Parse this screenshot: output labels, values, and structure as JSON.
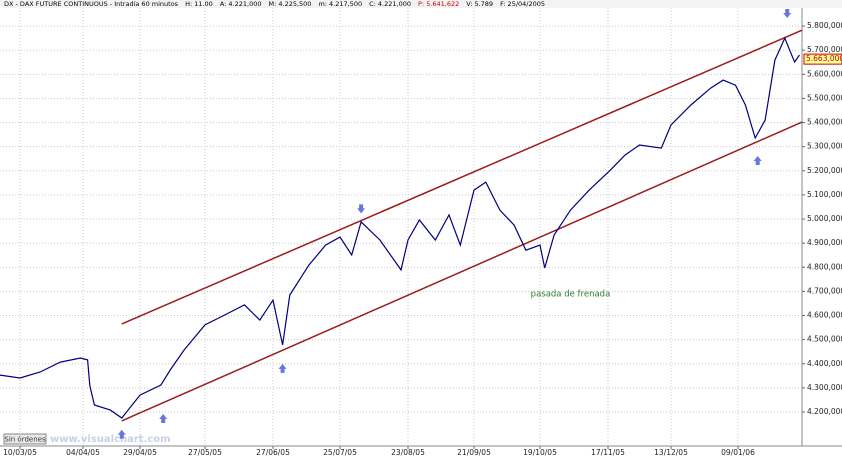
{
  "chart_data": {
    "type": "line",
    "header": [
      "DX - DAX FUTURE CONTINUOUS - Intradía 60 minutos",
      "H: 11.00",
      "A: 4.221,000",
      "M: 4.225,500",
      "m: 4.217,500",
      "C: 4.221,000",
      "P: 5.641,622",
      "V: 5.789",
      "F: 25/04/2005"
    ],
    "header_colors": [
      "#000000",
      "#000000",
      "#000000",
      "#000000",
      "#000000",
      "#000000",
      "#cc0000",
      "#000000",
      "#000000"
    ],
    "x": [
      "02/03/05",
      "10/03/05",
      "18/03/05",
      "26/03/05",
      "03/04/05",
      "06/04/05",
      "07/04/05",
      "09/04/05",
      "16/04/05",
      "21/04/05",
      "29/04/05",
      "08/05/05",
      "12/05/05",
      "18/05/05",
      "27/05/05",
      "05/06/05",
      "14/06/05",
      "21/06/05",
      "27/06/05",
      "01/07/05",
      "04/07/05",
      "12/07/05",
      "19/07/05",
      "25/07/05",
      "30/07/05",
      "03/08/05",
      "11/08/05",
      "20/08/05",
      "23/08/05",
      "28/08/05",
      "04/09/05",
      "10/09/05",
      "15/09/05",
      "21/09/05",
      "26/09/05",
      "02/10/05",
      "08/10/05",
      "13/10/05",
      "19/10/05",
      "21/10/05",
      "25/10/05",
      "01/11/05",
      "09/11/05",
      "18/11/05",
      "24/11/05",
      "30/11/05",
      "09/12/05",
      "13/12/05",
      "21/12/05",
      "29/12/05",
      "03/01/06",
      "08/01/06",
      "12/01/06",
      "16/01/06",
      "20/01/06",
      "24/01/06",
      "28/01/06",
      "30/01/06",
      "01/02/06",
      "03/02/06"
    ],
    "values": [
      4353,
      4341,
      4366,
      4407,
      4424,
      4416,
      4310,
      4229,
      4208,
      4175,
      4270,
      4312,
      4374,
      4457,
      4561,
      4602,
      4644,
      4581,
      4664,
      4478,
      4685,
      4809,
      4892,
      4925,
      4851,
      4988,
      4913,
      4789,
      4913,
      4996,
      4913,
      5017,
      4892,
      5120,
      5153,
      5037,
      4975,
      4871,
      4892,
      4797,
      4934,
      5037,
      5120,
      5203,
      5265,
      5307,
      5294,
      5390,
      5473,
      5543,
      5576,
      5555,
      5473,
      5336,
      5410,
      5659,
      5750,
      5700,
      5651,
      5680
    ],
    "color": "#000080",
    "xlim": [
      "02/03/05",
      "04/02/06"
    ],
    "xticks": [
      "10/03/05",
      "04/04/05",
      "29/04/05",
      "27/05/05",
      "27/06/05",
      "25/07/05",
      "23/08/05",
      "21/09/05",
      "19/10/05",
      "17/11/05",
      "13/12/05",
      "09/01/06"
    ],
    "ylim": [
      4059,
      5875
    ],
    "yticks": [
      {
        "value": 4200,
        "label": "4.200,000"
      },
      {
        "value": 4300,
        "label": "4.300,000"
      },
      {
        "value": 4400,
        "label": "4.400,000"
      },
      {
        "value": 4500,
        "label": "4.500,000"
      },
      {
        "value": 4600,
        "label": "4.600,000"
      },
      {
        "value": 4700,
        "label": "4.700,000"
      },
      {
        "value": 4800,
        "label": "4.800,000"
      },
      {
        "value": 4900,
        "label": "4.900,000"
      },
      {
        "value": 5000,
        "label": "5.000,000"
      },
      {
        "value": 5100,
        "label": "5.100,000"
      },
      {
        "value": 5200,
        "label": "5.200,000"
      },
      {
        "value": 5300,
        "label": "5.300,000"
      },
      {
        "value": 5400,
        "label": "5.400,000"
      },
      {
        "value": 5500,
        "label": "5.500,000"
      },
      {
        "value": 5600,
        "label": "5.600,000"
      },
      {
        "value": 5700,
        "label": "5.700,000"
      },
      {
        "value": 5800,
        "label": "5.800,000"
      }
    ],
    "grid": true,
    "last": {
      "value": 5663,
      "label": "5.663,000"
    },
    "channels": [
      {
        "x": [
          "21/04/05",
          "04/02/06"
        ],
        "values": [
          4565,
          5783
        ]
      },
      {
        "x": [
          "21/04/05",
          "04/02/06"
        ],
        "values": [
          4163,
          5402
        ]
      }
    ],
    "channel_color": "#9b1c1c",
    "arrows": [
      {
        "x": "03/08/05",
        "value": 5040,
        "dir": "down"
      },
      {
        "x": "29/01/06",
        "value": 5850,
        "dir": "down"
      },
      {
        "x": "21/04/05",
        "value": 4110,
        "dir": "up"
      },
      {
        "x": "09/05/05",
        "value": 4175,
        "dir": "up"
      },
      {
        "x": "01/07/05",
        "value": 4383,
        "dir": "up"
      },
      {
        "x": "17/01/06",
        "value": 5245,
        "dir": "up"
      }
    ],
    "arrow_color": "#6677dd",
    "annotation": {
      "text": "pasada de frenada",
      "x": "01/11/05",
      "value": 4690,
      "color": "#2e7d32"
    },
    "button": "Sin órdenes",
    "watermark": "www.visualchart.com"
  }
}
